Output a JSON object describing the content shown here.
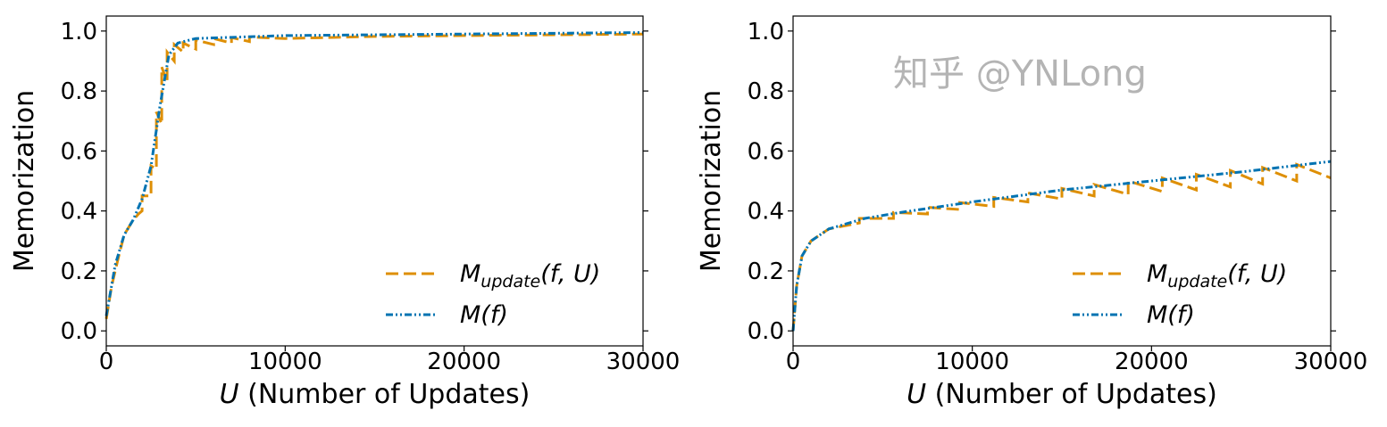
{
  "chart_data": [
    {
      "type": "line",
      "xlabel": "U (Number of Updates)",
      "xlabel_italic_part": "U",
      "xlabel_rest": " (Number of Updates)",
      "ylabel": "Memorization",
      "xlim": [
        0,
        30000
      ],
      "ylim": [
        -0.05,
        1.05
      ],
      "xticks": [
        0,
        10000,
        20000,
        30000
      ],
      "xtick_labels": [
        "0",
        "10000",
        "20000",
        "30000"
      ],
      "yticks": [
        0.0,
        0.2,
        0.4,
        0.6,
        0.8,
        1.0
      ],
      "ytick_labels": [
        "0.0",
        "0.2",
        "0.4",
        "0.6",
        "0.8",
        "1.0"
      ],
      "grid": false,
      "legend_placement": "lower-right",
      "series": [
        {
          "name": "M_update(f, U)",
          "color": "#de8f05",
          "style": "dashed",
          "points": [
            [
              0,
              0.04
            ],
            [
              300,
              0.15
            ],
            [
              700,
              0.25
            ],
            [
              1000,
              0.32
            ],
            [
              1500,
              0.37
            ],
            [
              1800,
              0.39
            ],
            [
              2000,
              0.4
            ],
            [
              2000,
              0.45
            ],
            [
              2500,
              0.45
            ],
            [
              2500,
              0.55
            ],
            [
              2800,
              0.54
            ],
            [
              2800,
              0.73
            ],
            [
              3100,
              0.69
            ],
            [
              3100,
              0.88
            ],
            [
              3400,
              0.83
            ],
            [
              3400,
              0.93
            ],
            [
              3800,
              0.9
            ],
            [
              3800,
              0.955
            ],
            [
              4300,
              0.93
            ],
            [
              4300,
              0.96
            ],
            [
              5000,
              0.94
            ],
            [
              5000,
              0.97
            ],
            [
              6000,
              0.955
            ],
            [
              6000,
              0.975
            ],
            [
              7000,
              0.96
            ],
            [
              7000,
              0.978
            ],
            [
              8000,
              0.965
            ],
            [
              8000,
              0.98
            ],
            [
              10000,
              0.975
            ],
            [
              15000,
              0.982
            ],
            [
              20000,
              0.985
            ],
            [
              30000,
              0.99
            ]
          ]
        },
        {
          "name": "M(f)",
          "color": "#0173b2",
          "style": "dashdotdot",
          "points": [
            [
              0,
              0.05
            ],
            [
              500,
              0.22
            ],
            [
              1000,
              0.32
            ],
            [
              1500,
              0.37
            ],
            [
              2000,
              0.44
            ],
            [
              2500,
              0.55
            ],
            [
              3000,
              0.75
            ],
            [
              3500,
              0.92
            ],
            [
              4000,
              0.96
            ],
            [
              5000,
              0.975
            ],
            [
              10000,
              0.985
            ],
            [
              20000,
              0.99
            ],
            [
              30000,
              0.995
            ]
          ]
        }
      ]
    },
    {
      "type": "line",
      "xlabel": "U (Number of Updates)",
      "xlabel_italic_part": "U",
      "xlabel_rest": " (Number of Updates)",
      "ylabel": "Memorization",
      "xlim": [
        0,
        30000
      ],
      "ylim": [
        -0.05,
        1.05
      ],
      "xticks": [
        0,
        10000,
        20000,
        30000
      ],
      "xtick_labels": [
        "0",
        "10000",
        "20000",
        "30000"
      ],
      "yticks": [
        0.0,
        0.2,
        0.4,
        0.6,
        0.8,
        1.0
      ],
      "ytick_labels": [
        "0.0",
        "0.2",
        "0.4",
        "0.6",
        "0.8",
        "1.0"
      ],
      "grid": false,
      "legend_placement": "lower-right",
      "series": [
        {
          "name": "M_update(f, U)",
          "color": "#de8f05",
          "style": "dashed",
          "points": [
            [
              0,
              0
            ],
            [
              200,
              0.15
            ],
            [
              500,
              0.25
            ],
            [
              1000,
              0.3
            ],
            [
              2000,
              0.34
            ],
            [
              3700,
              0.36
            ],
            [
              3700,
              0.375
            ],
            [
              5600,
              0.375
            ],
            [
              5600,
              0.395
            ],
            [
              7500,
              0.39
            ],
            [
              7500,
              0.412
            ],
            [
              9300,
              0.405
            ],
            [
              9300,
              0.428
            ],
            [
              11200,
              0.415
            ],
            [
              11200,
              0.445
            ],
            [
              13100,
              0.43
            ],
            [
              13100,
              0.46
            ],
            [
              15000,
              0.44
            ],
            [
              15000,
              0.475
            ],
            [
              16800,
              0.45
            ],
            [
              16800,
              0.488
            ],
            [
              18700,
              0.455
            ],
            [
              18700,
              0.5
            ],
            [
              20600,
              0.465
            ],
            [
              20600,
              0.51
            ],
            [
              22500,
              0.47
            ],
            [
              22500,
              0.522
            ],
            [
              24400,
              0.48
            ],
            [
              24400,
              0.535
            ],
            [
              26200,
              0.49
            ],
            [
              26200,
              0.545
            ],
            [
              28100,
              0.5
            ],
            [
              28100,
              0.555
            ],
            [
              30000,
              0.51
            ]
          ]
        },
        {
          "name": "M(f)",
          "color": "#0173b2",
          "style": "dashdotdot",
          "points": [
            [
              0,
              0
            ],
            [
              200,
              0.15
            ],
            [
              500,
              0.25
            ],
            [
              1000,
              0.3
            ],
            [
              2000,
              0.34
            ],
            [
              4000,
              0.375
            ],
            [
              6000,
              0.395
            ],
            [
              10000,
              0.43
            ],
            [
              15000,
              0.47
            ],
            [
              20000,
              0.5
            ],
            [
              25000,
              0.53
            ],
            [
              30000,
              0.565
            ]
          ]
        }
      ]
    }
  ],
  "legend": {
    "update_main": "M",
    "update_sub": "update",
    "update_args": "(f, U)",
    "mf_main": "M",
    "mf_args": "(f)",
    "mf_f": "f"
  },
  "watermark": "知乎 @YNLong"
}
